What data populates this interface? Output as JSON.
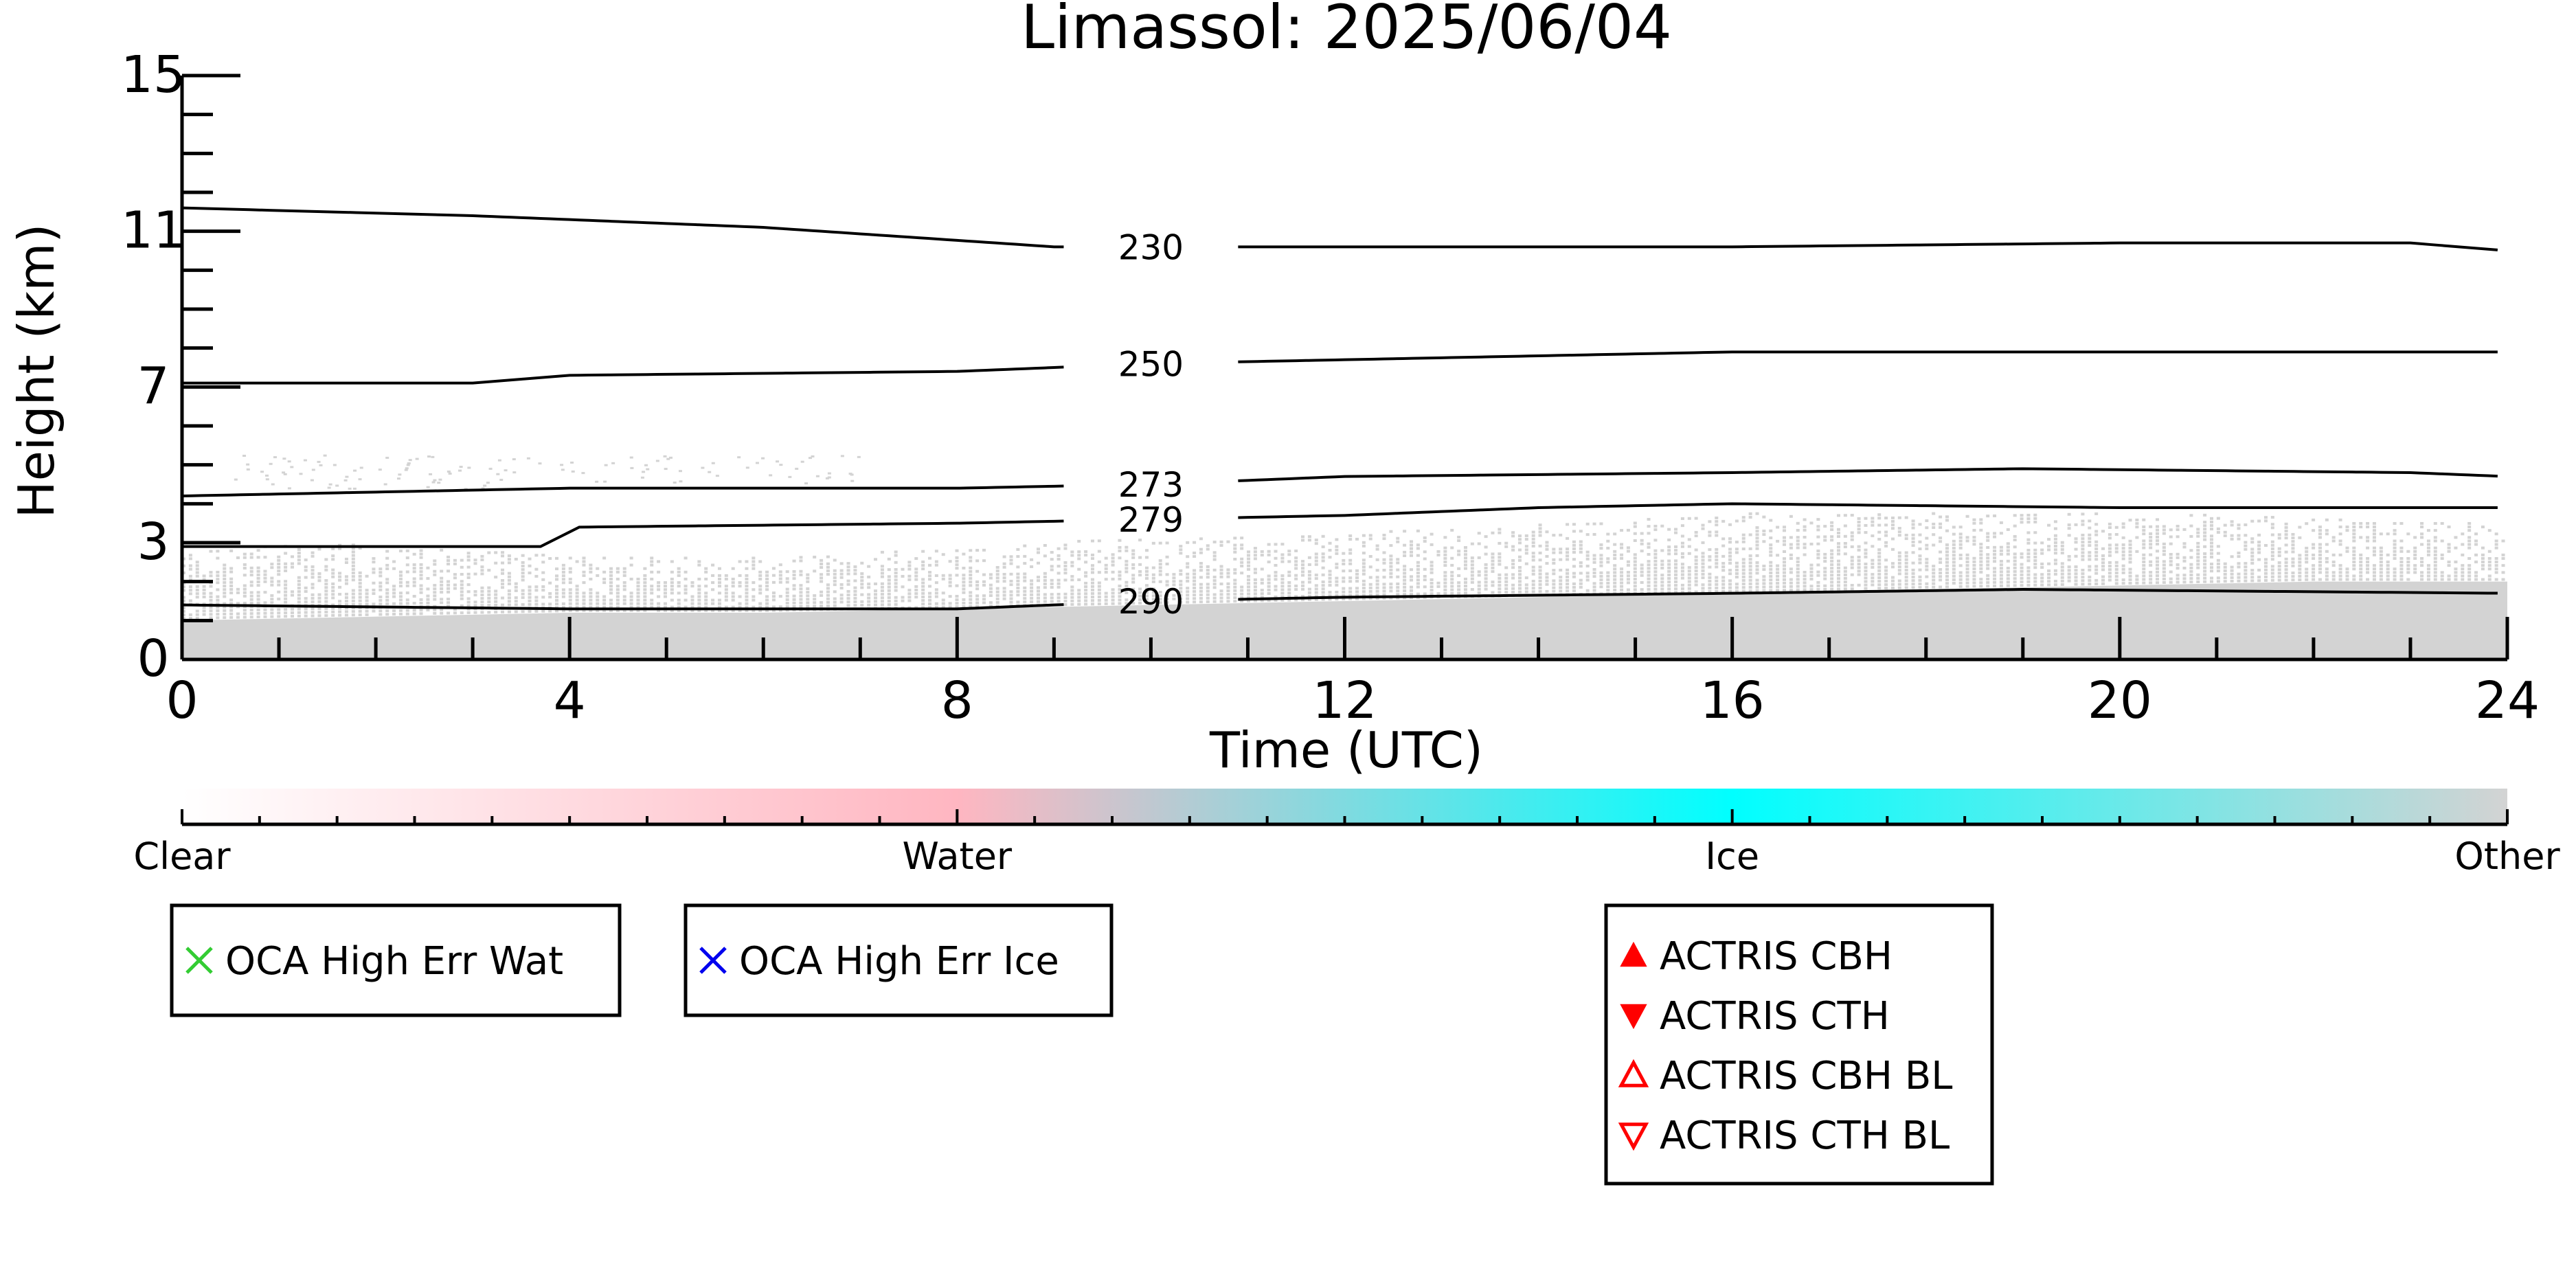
{
  "chart_data": {
    "type": "heatmap",
    "title": "Limassol: 2025/06/04",
    "xlabel": "Time (UTC)",
    "ylabel": "Height (km)",
    "xlim": [
      0,
      24
    ],
    "ylim": [
      0,
      15
    ],
    "x_ticks": [
      0,
      4,
      8,
      12,
      16,
      20,
      24
    ],
    "y_ticks": [
      0,
      3,
      7,
      11,
      15
    ],
    "grid": false,
    "temperature_contours": [
      {
        "label": "230",
        "points": [
          [
            0,
            11.6
          ],
          [
            3,
            11.4
          ],
          [
            6,
            11.1
          ],
          [
            9,
            10.6
          ],
          [
            12,
            10.6
          ],
          [
            16,
            10.6
          ],
          [
            20,
            10.7
          ],
          [
            23,
            10.7
          ],
          [
            24,
            10.5
          ]
        ]
      },
      {
        "label": "250",
        "points": [
          [
            0,
            7.1
          ],
          [
            3,
            7.1
          ],
          [
            4,
            7.3
          ],
          [
            8,
            7.4
          ],
          [
            10,
            7.6
          ],
          [
            12,
            7.7
          ],
          [
            16,
            7.9
          ],
          [
            20,
            7.9
          ],
          [
            24,
            7.9
          ]
        ]
      },
      {
        "label": "273",
        "points": [
          [
            0,
            4.2
          ],
          [
            4,
            4.4
          ],
          [
            8,
            4.4
          ],
          [
            10,
            4.5
          ],
          [
            12,
            4.7
          ],
          [
            16,
            4.8
          ],
          [
            19,
            4.9
          ],
          [
            23,
            4.8
          ],
          [
            24,
            4.7
          ]
        ]
      },
      {
        "label": "279",
        "points": [
          [
            0,
            2.9
          ],
          [
            3.7,
            2.9
          ],
          [
            4.1,
            3.4
          ],
          [
            8,
            3.5
          ],
          [
            10,
            3.6
          ],
          [
            12,
            3.7
          ],
          [
            14,
            3.9
          ],
          [
            16,
            4.0
          ],
          [
            20,
            3.9
          ],
          [
            24,
            3.9
          ]
        ]
      },
      {
        "label": "290",
        "points": [
          [
            0,
            1.4
          ],
          [
            4,
            1.3
          ],
          [
            8,
            1.3
          ],
          [
            10,
            1.5
          ],
          [
            12,
            1.6
          ],
          [
            16,
            1.7
          ],
          [
            19,
            1.8
          ],
          [
            24,
            1.7
          ]
        ]
      }
    ],
    "classification_mask": {
      "color": "#d3d3d3",
      "solid_top_km": [
        [
          0,
          1.0
        ],
        [
          2,
          1.1
        ],
        [
          4,
          1.2
        ],
        [
          6,
          1.2
        ],
        [
          8,
          1.3
        ],
        [
          10,
          1.4
        ],
        [
          12,
          1.5
        ],
        [
          14,
          1.6
        ],
        [
          16,
          1.7
        ],
        [
          18,
          1.8
        ],
        [
          20,
          1.9
        ],
        [
          22,
          2.0
        ],
        [
          24,
          2.0
        ]
      ],
      "speckle_top_km": [
        [
          0,
          2.8
        ],
        [
          2,
          2.9
        ],
        [
          4,
          2.6
        ],
        [
          6,
          2.6
        ],
        [
          8,
          2.8
        ],
        [
          10,
          3.1
        ],
        [
          12,
          3.2
        ],
        [
          14,
          3.4
        ],
        [
          16,
          3.7
        ],
        [
          18,
          3.7
        ],
        [
          20,
          3.7
        ],
        [
          22,
          3.6
        ],
        [
          24,
          3.4
        ]
      ]
    },
    "colorbar": {
      "labels": [
        "Clear",
        "Water",
        "Ice",
        "Other"
      ],
      "colors": [
        "#ffffff",
        "#ffb6c1",
        "#00ffff",
        "#d3d3d3"
      ]
    },
    "legends": [
      {
        "entries": [
          {
            "label": "OCA High Err Wat",
            "marker": "x",
            "color": "#33cc33"
          }
        ]
      },
      {
        "entries": [
          {
            "label": "OCA High Err Ice",
            "marker": "x",
            "color": "#0000ee"
          }
        ]
      },
      {
        "entries": [
          {
            "label": "ACTRIS CBH",
            "marker": "triangle-up-filled",
            "color": "#ff0000"
          },
          {
            "label": "ACTRIS CTH",
            "marker": "triangle-down-filled",
            "color": "#ff0000"
          },
          {
            "label": "ACTRIS CBH BL",
            "marker": "triangle-up-open",
            "color": "#ff0000"
          },
          {
            "label": "ACTRIS CTH BL",
            "marker": "triangle-down-open",
            "color": "#ff0000"
          }
        ]
      }
    ]
  }
}
